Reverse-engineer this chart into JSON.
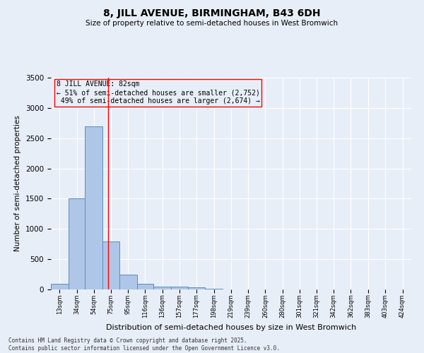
{
  "title": "8, JILL AVENUE, BIRMINGHAM, B43 6DH",
  "subtitle": "Size of property relative to semi-detached houses in West Bromwich",
  "xlabel": "Distribution of semi-detached houses by size in West Bromwich",
  "ylabel": "Number of semi-detached properties",
  "property_label": "8 JILL AVENUE: 82sqm",
  "pct_smaller": 51,
  "pct_larger": 49,
  "count_smaller": 2752,
  "count_larger": 2674,
  "bin_labels": [
    "13sqm",
    "34sqm",
    "54sqm",
    "75sqm",
    "95sqm",
    "116sqm",
    "136sqm",
    "157sqm",
    "177sqm",
    "198sqm",
    "219sqm",
    "239sqm",
    "260sqm",
    "280sqm",
    "301sqm",
    "321sqm",
    "342sqm",
    "362sqm",
    "383sqm",
    "403sqm",
    "424sqm"
  ],
  "bin_edges": [
    13,
    34,
    54,
    75,
    95,
    116,
    136,
    157,
    177,
    198,
    219,
    239,
    260,
    280,
    301,
    321,
    342,
    362,
    383,
    403,
    424,
    445
  ],
  "bar_heights": [
    90,
    1510,
    2690,
    790,
    240,
    95,
    50,
    50,
    30,
    10,
    0,
    0,
    0,
    0,
    0,
    0,
    0,
    0,
    0,
    0,
    0
  ],
  "bar_color": "#aec6e8",
  "bar_edge_color": "#5b8db8",
  "vline_x": 82,
  "vline_color": "red",
  "annotation_box_color": "red",
  "background_color": "#e8eef8",
  "plot_bg_color": "#e8eef8",
  "ylim": [
    0,
    3500
  ],
  "yticks": [
    0,
    500,
    1000,
    1500,
    2000,
    2500,
    3000,
    3500
  ],
  "footer": "Contains HM Land Registry data © Crown copyright and database right 2025.\nContains public sector information licensed under the Open Government Licence v3.0."
}
